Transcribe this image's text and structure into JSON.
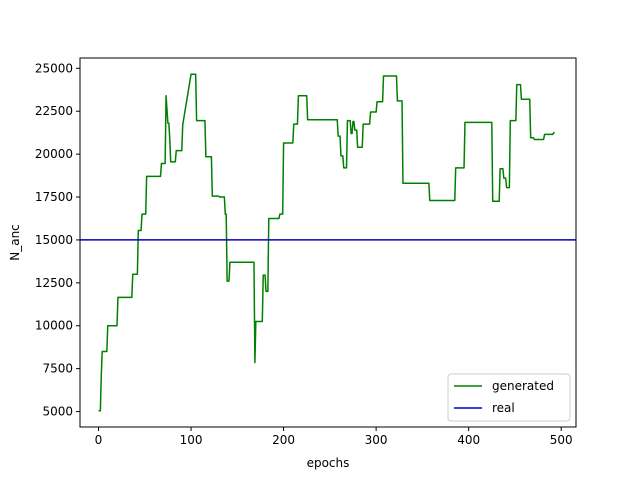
{
  "chart_data": {
    "type": "line",
    "title": "",
    "xlabel": "epochs",
    "ylabel": "N_anc",
    "xlim": [
      -20,
      516
    ],
    "ylim": [
      4100,
      25600
    ],
    "xticks": [
      0,
      100,
      200,
      300,
      400,
      500
    ],
    "xtick_labels": [
      "0",
      "100",
      "200",
      "300",
      "400",
      "500"
    ],
    "yticks": [
      5000,
      7500,
      10000,
      12500,
      15000,
      17500,
      20000,
      22500,
      25000
    ],
    "ytick_labels": [
      "5000",
      "7500",
      "10000",
      "12500",
      "15000",
      "17500",
      "20000",
      "22500",
      "25000"
    ],
    "grid": false,
    "legend_position": "lower-right",
    "series": [
      {
        "name": "generated",
        "color": "#008000",
        "x": [
          0,
          2,
          3,
          4,
          9,
          10,
          20,
          21,
          36,
          37,
          42,
          43,
          46,
          47,
          51,
          52,
          67,
          68,
          72,
          73,
          75,
          76,
          77,
          78,
          83,
          84,
          90,
          91,
          100,
          101,
          105,
          106,
          115,
          116,
          122,
          123,
          130,
          131,
          136,
          137,
          138,
          139,
          141,
          142,
          168,
          169,
          170,
          171,
          177,
          178,
          179,
          180,
          181,
          182,
          183,
          184,
          185,
          186,
          195,
          196,
          199,
          200,
          210,
          211,
          213,
          214,
          215,
          216,
          225,
          226,
          238,
          239,
          258,
          259,
          261,
          262,
          264,
          265,
          268,
          269,
          272,
          273,
          274,
          275,
          276,
          277,
          279,
          280,
          285,
          286,
          293,
          294,
          300,
          301,
          307,
          308,
          311,
          312,
          322,
          323,
          328,
          329,
          335,
          336,
          357,
          358,
          385,
          386,
          395,
          396,
          425,
          426,
          433,
          434,
          437,
          438,
          440,
          441,
          444,
          445,
          451,
          452,
          456,
          457,
          466,
          467,
          470,
          471,
          481,
          482,
          491,
          492,
          493
        ],
        "y": [
          5050,
          5050,
          7100,
          8500,
          8500,
          10000,
          10000,
          11650,
          11650,
          13000,
          13000,
          15550,
          15550,
          16500,
          16500,
          18700,
          18700,
          19450,
          19450,
          23400,
          21800,
          21800,
          20900,
          19550,
          19550,
          20200,
          20200,
          21700,
          24650,
          24650,
          24650,
          21950,
          21950,
          19850,
          19850,
          17550,
          17550,
          17500,
          17500,
          16500,
          16500,
          12600,
          12600,
          13700,
          13700,
          7850,
          10250,
          10250,
          10250,
          12950,
          12950,
          12950,
          12000,
          12000,
          12000,
          16250,
          16250,
          16250,
          16250,
          16500,
          16500,
          20650,
          20650,
          21750,
          21750,
          21750,
          21750,
          23400,
          23400,
          22000,
          22000,
          22000,
          22000,
          21050,
          21050,
          19900,
          19900,
          19200,
          19200,
          21950,
          21950,
          21200,
          21200,
          21900,
          21900,
          21400,
          21400,
          20400,
          20400,
          21750,
          21750,
          22450,
          22450,
          23050,
          23050,
          24550,
          24550,
          24550,
          24550,
          23100,
          23100,
          18300,
          18300,
          18300,
          18300,
          17300,
          17300,
          19200,
          19200,
          21850,
          21850,
          17250,
          17250,
          19150,
          19150,
          18600,
          18600,
          18050,
          18050,
          21950,
          21950,
          24050,
          24050,
          23200,
          23200,
          20950,
          20950,
          20850,
          20850,
          21150,
          21150,
          21250,
          21250
        ]
      },
      {
        "name": "real",
        "color": "#0000cc",
        "x": [
          -20,
          516
        ],
        "y": [
          15000,
          15000
        ]
      }
    ]
  }
}
